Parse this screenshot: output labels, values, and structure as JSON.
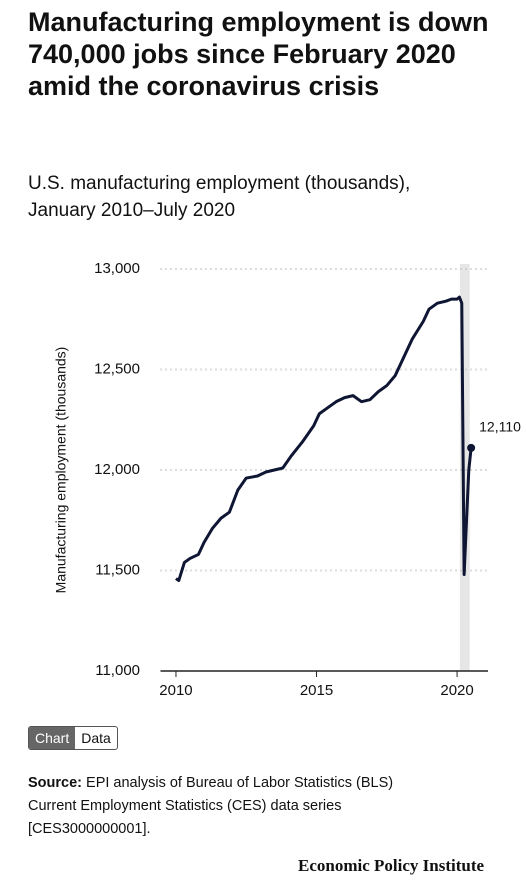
{
  "chart_data": {
    "type": "line",
    "title": "Manufacturing employment is down 740,000 jobs since February 2020 amid the coronavirus crisis",
    "subtitle": [
      "U.S. manufacturing employment (thousands),",
      "January 2010–July 2020"
    ],
    "y_label": "Manufacturing employment (thousands)",
    "x": [
      2010.0,
      2010.1,
      2010.3,
      2010.5,
      2010.8,
      2011.0,
      2011.3,
      2011.6,
      2011.9,
      2012.2,
      2012.5,
      2012.9,
      2013.2,
      2013.5,
      2013.8,
      2014.1,
      2014.5,
      2014.9,
      2015.1,
      2015.4,
      2015.7,
      2016.0,
      2016.3,
      2016.6,
      2016.9,
      2017.2,
      2017.5,
      2017.8,
      2018.1,
      2018.4,
      2018.8,
      2019.0,
      2019.3,
      2019.6,
      2019.8,
      2020.0,
      2020.083,
      2020.167,
      2020.25,
      2020.333,
      2020.417,
      2020.5
    ],
    "series": [
      {
        "name": "Manufacturing employment",
        "color": "#0f1633",
        "values": [
          11460,
          11450,
          11540,
          11560,
          11580,
          11640,
          11710,
          11760,
          11790,
          11900,
          11960,
          11970,
          11990,
          12000,
          12010,
          12070,
          12140,
          12220,
          12280,
          12310,
          12340,
          12360,
          12370,
          12340,
          12350,
          12390,
          12420,
          12470,
          12560,
          12650,
          12740,
          12800,
          12830,
          12840,
          12850,
          12850,
          12860,
          12830,
          11480,
          11740,
          12000,
          12110
        ],
        "value_labels": [
          null,
          null,
          null,
          null,
          null,
          null,
          null,
          null,
          null,
          null,
          null,
          null,
          null,
          null,
          null,
          null,
          null,
          null,
          null,
          null,
          null,
          null,
          null,
          null,
          null,
          null,
          null,
          null,
          null,
          null,
          null,
          null,
          null,
          null,
          null,
          null,
          null,
          null,
          null,
          null,
          null,
          "12,110"
        ]
      }
    ],
    "xlim": [
      2009.45,
      2021.1
    ],
    "xticks": [
      2010,
      2015,
      2020
    ],
    "ylim": [
      11000,
      13000
    ],
    "yticks": [
      {
        "value": 11000,
        "label": "11,000"
      },
      {
        "value": 11500,
        "label": "11,500"
      },
      {
        "value": 12000,
        "label": "12,000"
      },
      {
        "value": 12500,
        "label": "12,500"
      },
      {
        "value": 13000,
        "label": "13,000"
      }
    ],
    "grid": true,
    "highlight_xlim": [
      2020.1,
      2020.45
    ]
  },
  "ui": {
    "tabs": [
      "Chart",
      "Data"
    ],
    "source_label": "Source:",
    "source_lines": [
      "EPI analysis of Bureau of Labor Statistics (BLS)",
      "Current Employment Statistics (CES) data series",
      "[CES3000000001]."
    ],
    "footer": "Economic Policy Institute"
  }
}
